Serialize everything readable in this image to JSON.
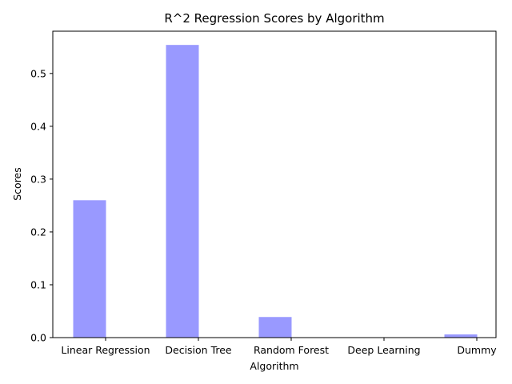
{
  "chart_data": {
    "type": "bar",
    "title": "R^2 Regression Scores by Algorithm",
    "xlabel": "Algorithm",
    "ylabel": "Scores",
    "categories": [
      "Linear Regression",
      "Decision Tree",
      "Random Forest",
      "Deep Learning",
      "Dummy"
    ],
    "values": [
      0.26,
      0.554,
      0.039,
      0.0,
      0.006
    ],
    "ylim": [
      0,
      0.58
    ],
    "yticks": [
      0.0,
      0.1,
      0.2,
      0.3,
      0.4,
      0.5
    ],
    "ytick_labels": [
      "0.0",
      "0.1",
      "0.2",
      "0.3",
      "0.4",
      "0.5"
    ],
    "bar_color": "#9999ff",
    "grid": false,
    "legend": "none"
  }
}
